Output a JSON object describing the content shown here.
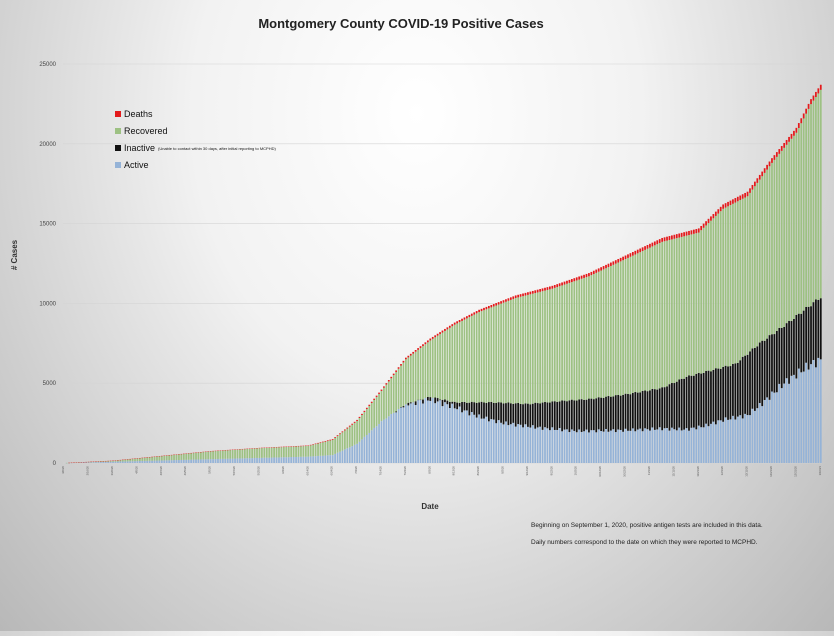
{
  "chart_data": {
    "type": "bar",
    "stacked": true,
    "title": "Montgomery County COVID-19 Positive Cases",
    "xlabel": "Date",
    "ylabel": "# Cases",
    "ylim": [
      0,
      25000
    ],
    "yticks": [
      0,
      5000,
      10000,
      15000,
      20000,
      25000
    ],
    "grid": true,
    "legend_position": "top-left",
    "legend": [
      {
        "name": "Deaths",
        "color": "#e31a1c",
        "note": ""
      },
      {
        "name": "Recovered",
        "color": "#9dc183",
        "note": ""
      },
      {
        "name": "Inactive",
        "color": "#111111",
        "note": "(Unable to contact within 30 days, after initial reporting to MCPHD)"
      },
      {
        "name": "Active",
        "color": "#95b3d7",
        "note": ""
      }
    ],
    "keyframes": {
      "total": [
        [
          0,
          0
        ],
        [
          20,
          150
        ],
        [
          40,
          450
        ],
        [
          60,
          750
        ],
        [
          80,
          950
        ],
        [
          100,
          1100
        ],
        [
          110,
          1500
        ],
        [
          120,
          2700
        ],
        [
          130,
          4600
        ],
        [
          140,
          6600
        ],
        [
          150,
          7800
        ],
        [
          160,
          8800
        ],
        [
          170,
          9600
        ],
        [
          185,
          10500
        ],
        [
          200,
          11100
        ],
        [
          215,
          11900
        ],
        [
          230,
          13000
        ],
        [
          245,
          14100
        ],
        [
          260,
          14700
        ],
        [
          270,
          16200
        ],
        [
          280,
          17000
        ],
        [
          290,
          19100
        ],
        [
          300,
          21000
        ],
        [
          306,
          22800
        ],
        [
          310,
          23700
        ]
      ],
      "inactive_plus_active": [
        [
          0,
          0
        ],
        [
          100,
          400
        ],
        [
          110,
          500
        ],
        [
          120,
          1200
        ],
        [
          130,
          2600
        ],
        [
          140,
          3700
        ],
        [
          150,
          4150
        ],
        [
          160,
          3800
        ],
        [
          175,
          3800
        ],
        [
          190,
          3700
        ],
        [
          205,
          3900
        ],
        [
          215,
          4000
        ],
        [
          230,
          4300
        ],
        [
          245,
          4700
        ],
        [
          255,
          5400
        ],
        [
          265,
          5800
        ],
        [
          275,
          6200
        ],
        [
          285,
          7500
        ],
        [
          295,
          8600
        ],
        [
          305,
          9800
        ],
        [
          310,
          10400
        ]
      ],
      "active": [
        [
          0,
          0
        ],
        [
          20,
          150
        ],
        [
          40,
          400
        ],
        [
          60,
          600
        ],
        [
          80,
          650
        ],
        [
          100,
          450
        ],
        [
          110,
          600
        ],
        [
          120,
          1600
        ],
        [
          130,
          2800
        ],
        [
          140,
          3700
        ],
        [
          150,
          4000
        ],
        [
          160,
          3500
        ],
        [
          170,
          2900
        ],
        [
          180,
          2500
        ],
        [
          195,
          2200
        ],
        [
          210,
          2000
        ],
        [
          230,
          2050
        ],
        [
          245,
          2150
        ],
        [
          255,
          2100
        ],
        [
          262,
          2300
        ],
        [
          270,
          2700
        ],
        [
          280,
          3000
        ],
        [
          285,
          3600
        ],
        [
          295,
          5000
        ],
        [
          305,
          6100
        ],
        [
          310,
          6450
        ]
      ],
      "deaths": [
        [
          0,
          0
        ],
        [
          100,
          30
        ],
        [
          150,
          120
        ],
        [
          200,
          180
        ],
        [
          250,
          250
        ],
        [
          310,
          320
        ]
      ]
    },
    "num_days": 311,
    "x_labels": [
      "3/6/20",
      "3/16/20",
      "3/26/20",
      "4/5/20",
      "4/15/20",
      "4/25/20",
      "5/5/20",
      "5/15/20",
      "5/25/20",
      "6/4/20",
      "6/14/20",
      "6/24/20",
      "7/4/20",
      "7/14/20",
      "7/24/20",
      "8/3/20",
      "8/13/20",
      "8/23/20",
      "9/2/20",
      "9/12/20",
      "9/22/20",
      "10/2/20",
      "10/12/20",
      "10/22/20",
      "11/1/20",
      "11/11/20",
      "11/21/20",
      "12/1/20",
      "12/11/20",
      "12/21/20",
      "12/31/20",
      "1/10/21"
    ]
  },
  "notes": [
    "Beginning on September 1, 2020, positive antigen tests are included in this data.",
    "Daily numbers correspond to the date on which they were reported to MCPHD."
  ]
}
